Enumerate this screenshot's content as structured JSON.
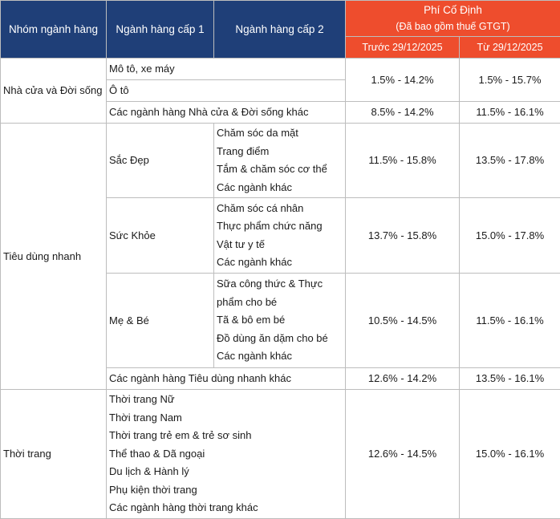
{
  "header": {
    "group": "Nhóm ngành hàng",
    "level1": "Ngành hàng cấp 1",
    "level2": "Ngành hàng cấp 2",
    "fee_title": "Phí Cố Định",
    "fee_note": "(Đã bao gồm thuế GTGT)",
    "before": "Trước 29/12/2025",
    "from": "Từ 29/12/2025"
  },
  "groups": {
    "home": {
      "name": "Nhà cửa và Đời sống",
      "rows": [
        {
          "label": "Mô tô, xe máy"
        },
        {
          "label": "Ô tô"
        },
        {
          "label": "Các ngành hàng Nhà cửa & Đời sống khác",
          "before": "8.5% - 14.2%",
          "from": "11.5% - 16.1%"
        }
      ],
      "shared_fee": {
        "before": "1.5% - 14.2%",
        "from": "1.5% - 15.7%"
      }
    },
    "fmcg": {
      "name": "Tiêu dùng nhanh",
      "beauty": {
        "name": "Sắc Đẹp",
        "items": [
          "Chăm sóc da mặt",
          "Trang điểm",
          "Tắm & chăm sóc cơ thể",
          "Các ngành khác"
        ],
        "before": "11.5% - 15.8%",
        "from": "13.5% - 17.8%"
      },
      "health": {
        "name": "Sức Khỏe",
        "items": [
          "Chăm sóc cá nhân",
          "Thực phẩm chức năng",
          "Vật tư y tế",
          "Các ngành khác"
        ],
        "before": "13.7% - 15.8%",
        "from": "15.0% - 17.8%"
      },
      "baby": {
        "name": "Mẹ & Bé",
        "items": [
          "Sữa công thức & Thực",
          "phẩm cho bé",
          "Tã & bô em bé",
          "Đồ dùng ăn dặm cho bé",
          "Các ngành khác"
        ],
        "before": "10.5% - 14.5%",
        "from": "11.5% - 16.1%"
      },
      "other": {
        "label": "Các ngành hàng Tiêu dùng nhanh khác",
        "before": "12.6% - 14.2%",
        "from": "13.5% - 16.1%"
      }
    },
    "fashion": {
      "name": "Thời trang",
      "items": [
        "Thời trang Nữ",
        "Thời trang Nam",
        "Thời trang trẻ em & trẻ sơ sinh",
        "Thể thao & Dã ngoại",
        "Du lịch & Hành lý",
        "Phụ kiện thời trang",
        "Các ngành hàng thời trang khác"
      ],
      "before": "12.6% - 14.5%",
      "from": "15.0% - 16.1%"
    }
  }
}
